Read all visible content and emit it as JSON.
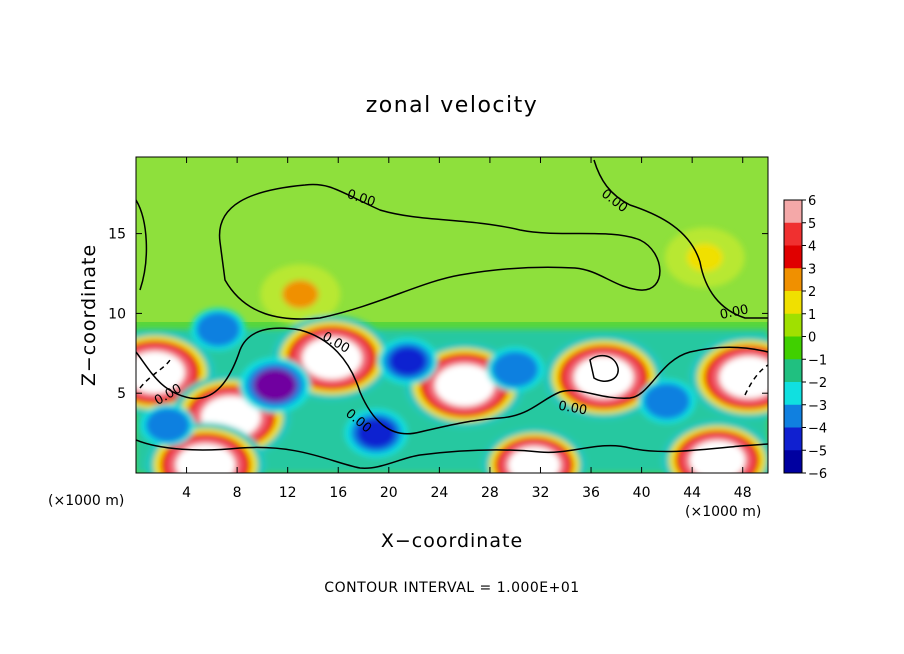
{
  "chart_data": {
    "type": "heatmap",
    "title": "zonal velocity",
    "xlabel": "X−coordinate",
    "ylabel": "Z−coordinate",
    "x_unit_label": "(×1000 m)",
    "y_unit_label": "(×1000 m)",
    "xlim": [
      0,
      50
    ],
    "ylim": [
      0,
      19.8
    ],
    "x_ticks": [
      4,
      8,
      12,
      16,
      20,
      24,
      28,
      32,
      36,
      40,
      44,
      48
    ],
    "x_tick_labels": [
      "4",
      "8",
      "12",
      "16",
      "20",
      "24",
      "28",
      "32",
      "36",
      "40",
      "44",
      "48"
    ],
    "y_ticks": [
      5,
      10,
      15
    ],
    "y_tick_labels": [
      "5",
      "10",
      "15"
    ],
    "colorbar": {
      "levels": [
        6,
        5,
        4,
        3,
        2,
        1,
        0,
        -1,
        -2,
        -3,
        -4,
        -5,
        -6
      ],
      "labels": [
        "6",
        "5",
        "4",
        "3",
        "2",
        "1",
        "0",
        "−1",
        "−2",
        "−3",
        "−4",
        "−5",
        "−6"
      ],
      "colors": [
        "#f4a8a8",
        "#f03030",
        "#e00000",
        "#f09000",
        "#f0e000",
        "#a0e000",
        "#40d000",
        "#20c080",
        "#10e0e0",
        "#1080e0",
        "#1020d0",
        "#0000a0",
        "#7000a0"
      ]
    },
    "contour_labels": [
      "0.00",
      "0.00",
      "0.00",
      "0.00",
      "0.00",
      "0.00",
      "0.00"
    ],
    "contour_interval_text": "CONTOUR INTERVAL = 1.000E+01",
    "features": [
      {
        "type": "blob",
        "x": 13,
        "z": 11.2,
        "value": 1.5
      },
      {
        "type": "blob",
        "x": 45,
        "z": 13.5,
        "value": 1.0
      },
      {
        "type": "blob",
        "x": 1.5,
        "z": 6.3,
        "value": 9
      },
      {
        "type": "blob",
        "x": 7.5,
        "z": 3.5,
        "value": 9
      },
      {
        "type": "blob",
        "x": 15.5,
        "z": 7.2,
        "value": 9
      },
      {
        "type": "blob",
        "x": 26,
        "z": 5.5,
        "value": 9
      },
      {
        "type": "blob",
        "x": 37,
        "z": 6.0,
        "value": 9
      },
      {
        "type": "blob",
        "x": 48.5,
        "z": 6.0,
        "value": 9
      },
      {
        "type": "blob",
        "x": 5.5,
        "z": 0.5,
        "value": 9
      },
      {
        "type": "blob",
        "x": 31.5,
        "z": 0.5,
        "value": 7
      },
      {
        "type": "blob",
        "x": 46,
        "z": 0.8,
        "value": 8
      },
      {
        "type": "blob",
        "x": 11,
        "z": 5.5,
        "value": -6
      },
      {
        "type": "blob",
        "x": 19,
        "z": 2.5,
        "value": -4.5
      },
      {
        "type": "blob",
        "x": 21.5,
        "z": 7.0,
        "value": -4
      },
      {
        "type": "blob",
        "x": 30,
        "z": 6.5,
        "value": -3.5
      },
      {
        "type": "blob",
        "x": 42,
        "z": 4.5,
        "value": -3.5
      },
      {
        "type": "blob",
        "x": 2.5,
        "z": 3.0,
        "value": -3
      },
      {
        "type": "blob",
        "x": 6.5,
        "z": 9.0,
        "value": -3
      }
    ]
  }
}
